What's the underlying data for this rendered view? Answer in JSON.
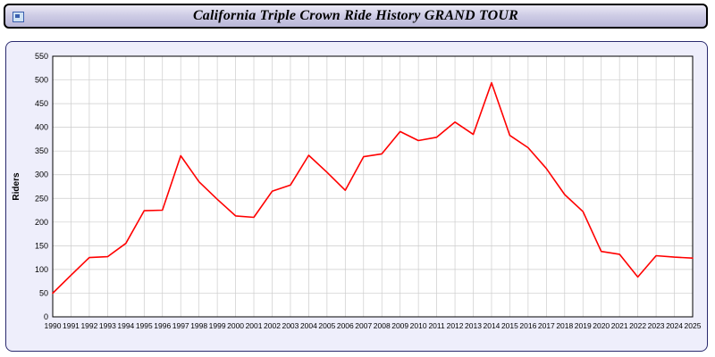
{
  "title_bar": {
    "title": "California Triple Crown Ride History GRAND TOUR"
  },
  "colors": {
    "line": "#ff0000",
    "grid": "#cccccc",
    "plot_background": "#ffffff",
    "panel_background": "#eeeefb",
    "title_gradient_top": "#eceaf6",
    "title_gradient_bottom": "#b9b7d8",
    "axis": "#000000"
  },
  "chart_data": {
    "type": "line",
    "title": "California Triple Crown Ride History GRAND TOUR",
    "xlabel": "",
    "ylabel": "Riders",
    "ylim": [
      0,
      550
    ],
    "ytick_step": 50,
    "grid": true,
    "legend_position": "none",
    "categories": [
      1990,
      1991,
      1992,
      1993,
      1994,
      1995,
      1996,
      1997,
      1998,
      1999,
      2000,
      2001,
      2002,
      2003,
      2004,
      2005,
      2006,
      2007,
      2008,
      2009,
      2010,
      2011,
      2012,
      2013,
      2014,
      2015,
      2016,
      2017,
      2018,
      2019,
      2020,
      2021,
      2022,
      2023,
      2024,
      2025
    ],
    "series": [
      {
        "name": "Riders",
        "color": "#ff0000",
        "values": [
          50,
          88,
          125,
          127,
          155,
          224,
          225,
          340,
          285,
          248,
          213,
          210,
          265,
          278,
          341,
          305,
          267,
          338,
          344,
          391,
          372,
          379,
          411,
          385,
          494,
          383,
          357,
          313,
          258,
          222,
          138,
          132,
          84,
          129,
          126,
          124
        ]
      }
    ]
  }
}
